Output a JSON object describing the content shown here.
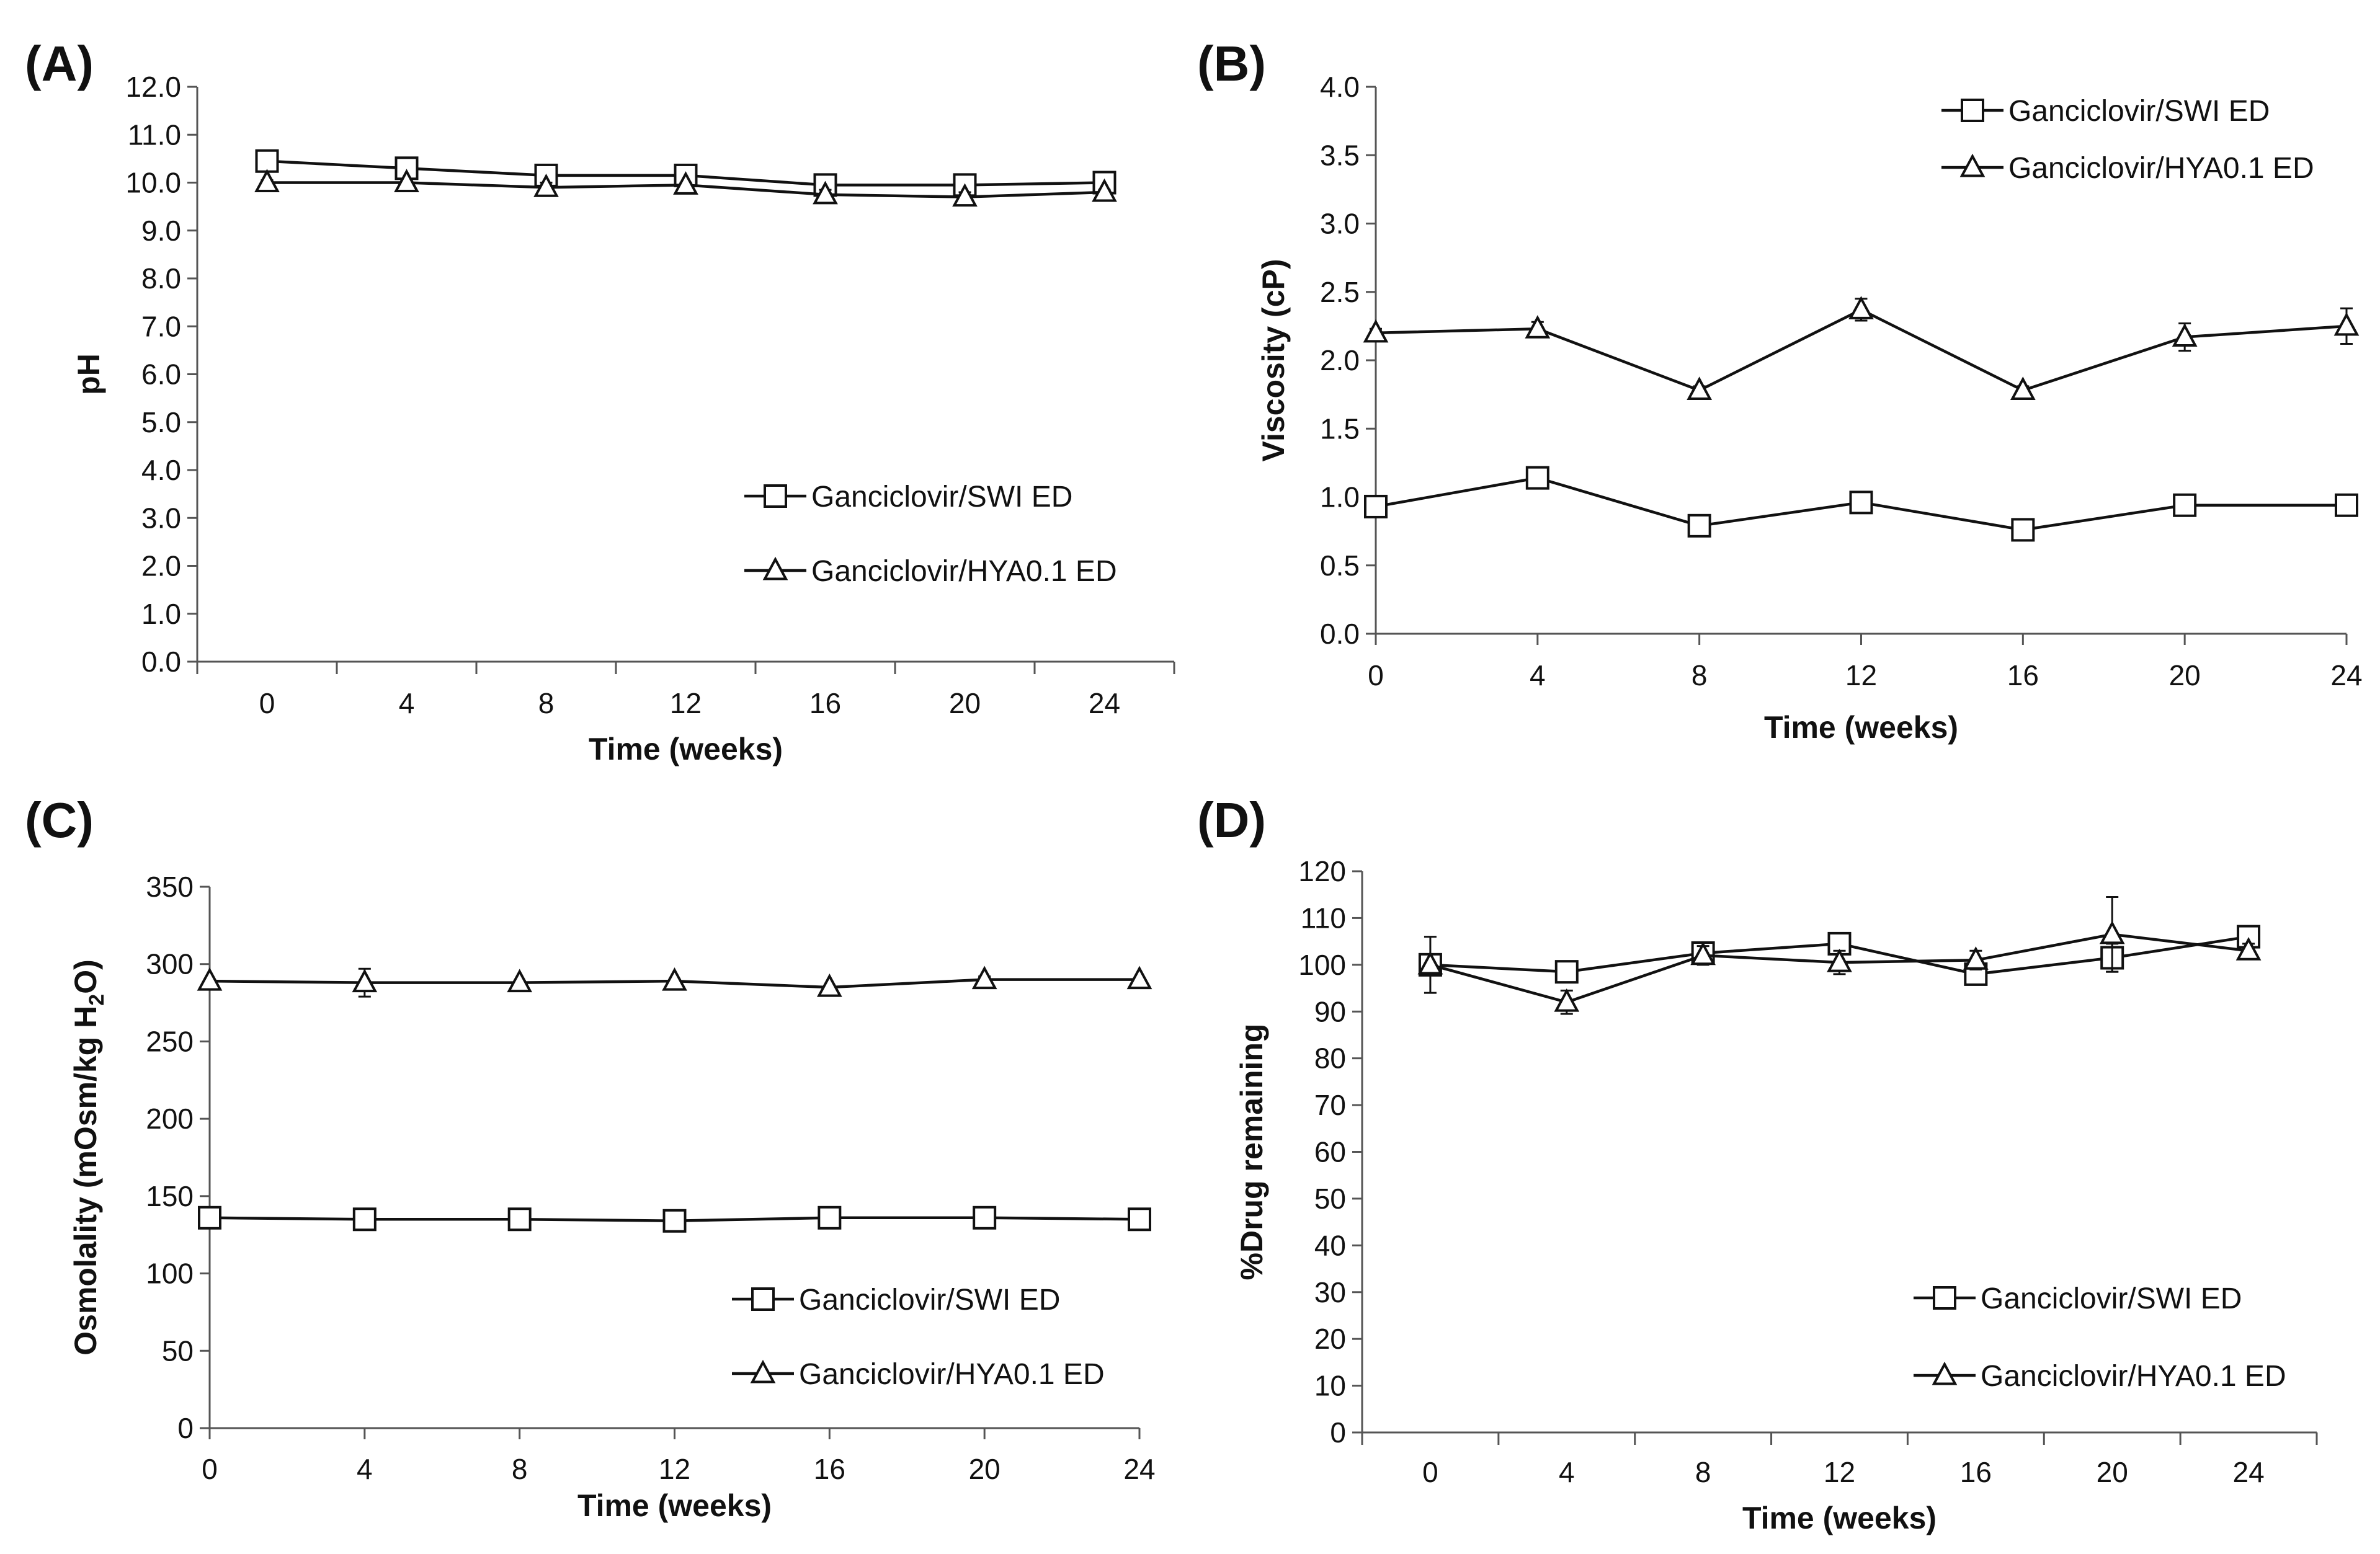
{
  "chart_data": [
    {
      "panel": "(A)",
      "type": "line",
      "xlabel": "Time (weeks)",
      "ylabel": "pH",
      "categories": [
        "0",
        "4",
        "8",
        "12",
        "16",
        "20",
        "24"
      ],
      "ylim": [
        0,
        12
      ],
      "yticks": [
        "0.0",
        "1.0",
        "2.0",
        "3.0",
        "4.0",
        "5.0",
        "6.0",
        "7.0",
        "8.0",
        "9.0",
        "10.0",
        "11.0",
        "12.0"
      ],
      "legend_position": "bottom-right",
      "series": [
        {
          "name": "Ganciclovir/SWI ED",
          "marker": "square",
          "values": [
            10.45,
            10.3,
            10.15,
            10.15,
            9.95,
            9.95,
            10.0
          ],
          "errors": [
            0.05,
            0.05,
            0.05,
            0.05,
            0.05,
            0.05,
            0.05
          ]
        },
        {
          "name": "Ganciclovir/HYA0.1 ED",
          "marker": "triangle",
          "values": [
            10.0,
            10.0,
            9.9,
            9.95,
            9.75,
            9.7,
            9.8
          ],
          "errors": [
            0.05,
            0.05,
            0.1,
            0.05,
            0.1,
            0.1,
            0.05
          ]
        }
      ]
    },
    {
      "panel": "(B)",
      "type": "line",
      "xlabel": "Time (weeks)",
      "ylabel": "Viscosity (cP)",
      "categories": [
        "0",
        "4",
        "8",
        "12",
        "16",
        "20",
        "24"
      ],
      "ylim": [
        0,
        4
      ],
      "yticks": [
        "0.0",
        "0.5",
        "1.0",
        "1.5",
        "2.0",
        "2.5",
        "3.0",
        "3.5",
        "4.0"
      ],
      "legend_position": "top-right",
      "series": [
        {
          "name": "Ganciclovir/SWI ED",
          "marker": "square",
          "values": [
            0.93,
            1.14,
            0.79,
            0.96,
            0.76,
            0.94,
            0.94
          ],
          "errors": [
            0.03,
            0.03,
            0.03,
            0.06,
            0.03,
            0.06,
            0.03
          ]
        },
        {
          "name": "Ganciclovir/HYA0.1 ED",
          "marker": "triangle",
          "values": [
            2.2,
            2.23,
            1.78,
            2.37,
            1.78,
            2.17,
            2.25
          ],
          "errors": [
            0.03,
            0.05,
            0.03,
            0.08,
            0.03,
            0.1,
            0.13
          ]
        }
      ]
    },
    {
      "panel": "(C)",
      "type": "line",
      "xlabel": "Time (weeks)",
      "ylabel": "Osmolality (mOsm/kg H",
      "ylabel_sub": "2",
      "ylabel_end": "O)",
      "categories": [
        "0",
        "4",
        "8",
        "12",
        "16",
        "20",
        "24"
      ],
      "ylim": [
        0,
        350
      ],
      "yticks": [
        "0",
        "50",
        "100",
        "150",
        "200",
        "250",
        "300",
        "350"
      ],
      "legend_position": "bottom-right",
      "series": [
        {
          "name": "Ganciclovir/SWI ED",
          "marker": "square",
          "values": [
            136,
            135,
            135,
            134,
            136,
            136,
            135
          ],
          "errors": [
            1,
            1,
            1,
            1,
            1,
            1,
            1
          ]
        },
        {
          "name": "Ganciclovir/HYA0.1 ED",
          "marker": "triangle",
          "values": [
            289,
            288,
            288,
            289,
            285,
            290,
            290
          ],
          "errors": [
            1,
            9,
            1,
            1,
            1,
            2,
            1
          ]
        }
      ]
    },
    {
      "panel": "(D)",
      "type": "line",
      "xlabel": "Time (weeks)",
      "ylabel": "%Drug remaining",
      "categories": [
        "0",
        "4",
        "8",
        "12",
        "16",
        "20",
        "24"
      ],
      "ylim": [
        0,
        120
      ],
      "yticks": [
        "0",
        "10",
        "20",
        "30",
        "40",
        "50",
        "60",
        "70",
        "80",
        "90",
        "100",
        "110",
        "120"
      ],
      "legend_position": "bottom-right",
      "series": [
        {
          "name": "Ganciclovir/SWI ED",
          "marker": "square",
          "values": [
            100,
            98.5,
            102.5,
            104.5,
            98,
            101.5,
            106
          ],
          "errors": [
            1,
            1.5,
            1.5,
            1.5,
            1.5,
            3,
            1.5
          ]
        },
        {
          "name": "Ganciclovir/HYA0.1 ED",
          "marker": "triangle",
          "values": [
            100,
            92,
            102,
            100.5,
            101,
            106.5,
            103
          ],
          "errors": [
            6,
            2.5,
            2,
            2.5,
            2,
            8,
            1.5
          ]
        }
      ]
    }
  ]
}
